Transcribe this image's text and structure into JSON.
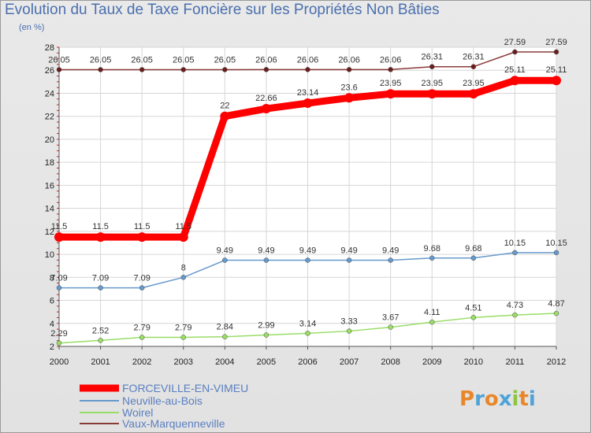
{
  "chart_data": {
    "type": "line",
    "title": "Evolution du Taux de Taxe Foncière sur les Propriétés Non Bâties",
    "ylabel": "(en %)",
    "xlabel": "",
    "x": [
      "2000",
      "2001",
      "2002",
      "2003",
      "2004",
      "2005",
      "2006",
      "2007",
      "2008",
      "2009",
      "2010",
      "2011",
      "2012"
    ],
    "ylim": [
      2,
      28
    ],
    "yticks": [
      "2",
      "4",
      "6",
      "8",
      "10",
      "12",
      "14",
      "16",
      "18",
      "20",
      "22",
      "24",
      "26",
      "28"
    ],
    "grid": true,
    "legend_position": "bottom-left",
    "series": [
      {
        "name": "FORCEVILLE-EN-VIMEU",
        "color": "#ff0000",
        "values": [
          11.5,
          11.5,
          11.5,
          11.5,
          22,
          22.66,
          23.14,
          23.6,
          23.95,
          23.95,
          23.95,
          25.11,
          25.11
        ],
        "labels": [
          "11.5",
          "11.5",
          "11.5",
          "11.5",
          "22",
          "22.66",
          "23.14",
          "23.6",
          "23.95",
          "23.95",
          "23.95",
          "25.11",
          "25.11"
        ]
      },
      {
        "name": "Neuville-au-Bois",
        "color": "#6699cc",
        "values": [
          7.09,
          7.09,
          7.09,
          8,
          9.49,
          9.49,
          9.49,
          9.49,
          9.49,
          9.68,
          9.68,
          10.15,
          10.15
        ],
        "labels": [
          "7.09",
          "7.09",
          "7.09",
          "8",
          "9.49",
          "9.49",
          "9.49",
          "9.49",
          "9.49",
          "9.68",
          "9.68",
          "10.15",
          "10.15"
        ]
      },
      {
        "name": "Woirel",
        "color": "#99dd66",
        "values": [
          2.29,
          2.52,
          2.79,
          2.79,
          2.84,
          2.99,
          3.14,
          3.33,
          3.67,
          4.11,
          4.51,
          4.73,
          4.87
        ],
        "labels": [
          "2.29",
          "2.52",
          "2.79",
          "2.79",
          "2.84",
          "2.99",
          "3.14",
          "3.33",
          "3.67",
          "4.11",
          "4.51",
          "4.73",
          "4.87"
        ]
      },
      {
        "name": "Vaux-Marquenneville",
        "color": "#8b3a3a",
        "values": [
          26.05,
          26.05,
          26.05,
          26.05,
          26.05,
          26.06,
          26.06,
          26.06,
          26.06,
          26.31,
          26.31,
          27.59,
          27.59
        ],
        "labels": [
          "26.05",
          "26.05",
          "26.05",
          "26.05",
          "26.05",
          "26.06",
          "26.06",
          "26.06",
          "26.06",
          "26.31",
          "26.31",
          "27.59",
          "27.59"
        ]
      }
    ]
  },
  "logo": {
    "text": "Proxiti"
  }
}
